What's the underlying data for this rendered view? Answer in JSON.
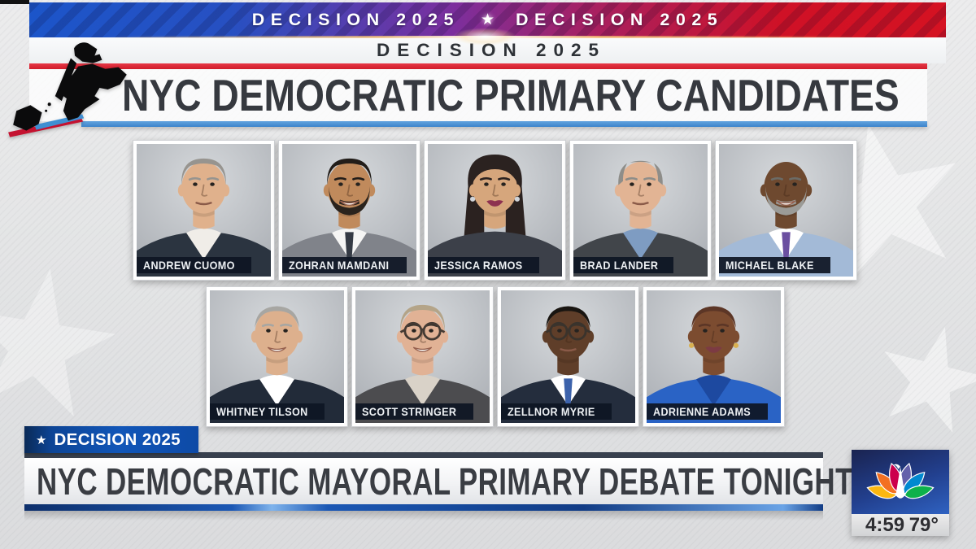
{
  "top_banner": {
    "text_left": "DECISION 2025",
    "star": "★",
    "text_right": "DECISION 2025"
  },
  "header": {
    "kicker": "DECISION 2025",
    "title": "NYC DEMOCRATIC PRIMARY CANDIDATES"
  },
  "candidates": [
    {
      "name": "ANDREW CUOMO",
      "avatar": {
        "skin": "#e0b18c",
        "hair": "#97948f",
        "hair_style": "side",
        "suit": "#2b3440",
        "shirt": "#f0ede8",
        "smile": false
      }
    },
    {
      "name": "ZOHRAN MAMDANI",
      "avatar": {
        "skin": "#c08a5c",
        "hair": "#221d19",
        "hair_style": "full",
        "beard": "#2a231d",
        "suit": "#80838a",
        "shirt": "#f5f5f4",
        "tie": "#343a44",
        "smile": true
      }
    },
    {
      "name": "JESSICA RAMOS",
      "avatar": {
        "skin": "#d6a67c",
        "hair": "#2b2220",
        "hair_style": "long",
        "suit": "#3c4049",
        "lips": "#8d3150",
        "earrings": "#cfd3d8",
        "smile": true
      }
    },
    {
      "name": "BRAD LANDER",
      "avatar": {
        "skin": "#e2b494",
        "hair": "#8e8d89",
        "hair_style": "receding",
        "suit": "#41454a",
        "shirt": "#7e9cc2",
        "smile": false
      }
    },
    {
      "name": "MICHAEL BLAKE",
      "avatar": {
        "skin": "#6e492f",
        "hair_style": "bald",
        "beard": "#9b9b97",
        "suit": "#a3bad7",
        "shirt": "#ffffff",
        "tie": "#6b4fa0",
        "smile": true
      }
    },
    {
      "name": "WHITNEY TILSON",
      "avatar": {
        "skin": "#ddb08d",
        "hair": "#a7a6a2",
        "hair_style": "short",
        "suit": "#222b39",
        "shirt": "#ffffff",
        "smile": true
      }
    },
    {
      "name": "SCOTT STRINGER",
      "avatar": {
        "skin": "#e1b295",
        "hair": "#b4a488",
        "hair_style": "side",
        "glasses": "#443a33",
        "suit": "#4c4c4f",
        "shirt": "#d9d2c8",
        "smile": true
      }
    },
    {
      "name": "ZELLNOR MYRIE",
      "avatar": {
        "skin": "#5f3e29",
        "hair": "#191511",
        "hair_style": "short",
        "glasses": "#3a332c",
        "suit": "#242d3d",
        "shirt": "#ffffff",
        "tie": "#3c62ab",
        "smile": false
      }
    },
    {
      "name": "ADRIENNE ADAMS",
      "avatar": {
        "skin": "#7c4c30",
        "hair": "#5c3626",
        "hair_style": "short",
        "suit": "#2a63c5",
        "shirt": "#1d49a0",
        "lips": "#7c3b43",
        "earrings": "#d9b152",
        "smile": true
      }
    }
  ],
  "lower_third": {
    "badge_star": "★",
    "badge_text": "DECISION 2025",
    "headline": "NYC DEMOCRATIC MAYORAL PRIMARY DEBATE TONIGHT"
  },
  "station": {
    "time": "4:59",
    "temp": "79°",
    "logo_icon": "nbc-peacock-icon",
    "peacock_colors": [
      "#FCB711",
      "#F37021",
      "#CC004C",
      "#6460AA",
      "#0089D0",
      "#0DB14B"
    ]
  },
  "colors": {
    "red_line": "#d8202e",
    "blue_line": "#4a90d9",
    "banner_blue": "#1d55c9",
    "banner_purple": "#7b2f9e",
    "banner_red": "#cf1126",
    "badge_blue": "#0f52b0",
    "nameplate_bg": "#101826",
    "title_text": "#36393f"
  }
}
